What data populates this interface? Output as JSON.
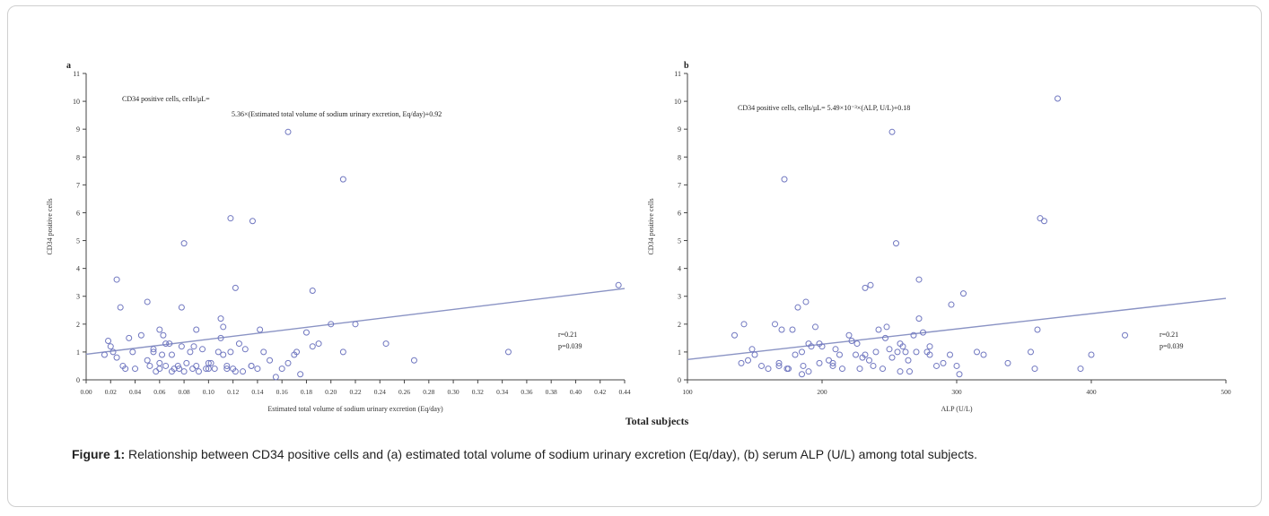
{
  "figure": {
    "common_xlabel": "Total subjects",
    "caption_label": "Figure 1:",
    "caption_text": " Relationship between CD34 positive cells and (a) estimated total volume of sodium urinary excretion (Eq/day), (b) serum ALP (U/L) among total subjects."
  },
  "colors": {
    "marker": "#7077c0",
    "line": "#8a93c4",
    "axis": "#444444"
  },
  "chart_data": [
    {
      "type": "scatter",
      "panel_label": "a",
      "title": "",
      "ylabel": "CD34 positive cells",
      "xlabel": "Estimated total volume of sodium urinary excretion (Eq/day)",
      "xlim": [
        0,
        0.44
      ],
      "ylim": [
        0,
        11
      ],
      "xticks": [
        "0.00",
        "0.02",
        "0.04",
        "0.06",
        "0.08",
        "0.10",
        "0.12",
        "0.14",
        "0.16",
        "0.18",
        "0.20",
        "0.22",
        "0.24",
        "0.26",
        "0.28",
        "0.30",
        "0.32",
        "0.34",
        "0.36",
        "0.38",
        "0.40",
        "0.42",
        "0.44"
      ],
      "yticks": [
        "0",
        "1",
        "2",
        "3",
        "4",
        "5",
        "6",
        "7",
        "8",
        "9",
        "10",
        "11"
      ],
      "equation_line1": "CD34 positive cells, cells/μL=",
      "equation_line2": "5.36×(Estimated total volume of sodium urinary excretion, Eq/day)+0.92",
      "r_text": "r=0.21",
      "p_text": "p=0.039",
      "fit": {
        "slope": 5.36,
        "intercept": 0.92
      },
      "x": [
        0.015,
        0.02,
        0.022,
        0.025,
        0.03,
        0.032,
        0.035,
        0.04,
        0.045,
        0.05,
        0.052,
        0.055,
        0.057,
        0.06,
        0.06,
        0.062,
        0.063,
        0.065,
        0.068,
        0.07,
        0.072,
        0.075,
        0.078,
        0.08,
        0.082,
        0.085,
        0.087,
        0.09,
        0.092,
        0.095,
        0.1,
        0.102,
        0.105,
        0.108,
        0.11,
        0.112,
        0.115,
        0.118,
        0.12,
        0.122,
        0.125,
        0.13,
        0.135,
        0.14,
        0.145,
        0.15,
        0.155,
        0.16,
        0.165,
        0.17,
        0.175,
        0.18,
        0.185,
        0.19,
        0.2,
        0.21,
        0.22,
        0.245,
        0.268,
        0.345,
        0.435,
        0.018,
        0.028,
        0.05,
        0.078,
        0.11,
        0.118,
        0.136,
        0.165,
        0.185,
        0.21,
        0.08,
        0.06,
        0.07,
        0.09,
        0.098,
        0.112,
        0.122,
        0.128,
        0.142,
        0.172,
        0.025,
        0.038,
        0.055,
        0.065,
        0.076,
        0.088,
        0.1,
        0.115,
        0.135
      ],
      "y": [
        0.9,
        1.2,
        1.0,
        0.8,
        0.5,
        0.4,
        1.5,
        0.4,
        1.6,
        0.7,
        0.5,
        1.1,
        0.3,
        1.8,
        0.4,
        0.9,
        1.6,
        0.5,
        1.3,
        0.9,
        0.4,
        0.5,
        1.2,
        0.3,
        0.6,
        1.0,
        0.4,
        0.5,
        0.3,
        1.1,
        0.4,
        0.6,
        0.4,
        1.0,
        1.5,
        0.9,
        0.5,
        1.0,
        0.4,
        0.3,
        1.3,
        1.1,
        0.5,
        0.4,
        1.0,
        0.7,
        0.1,
        0.4,
        0.6,
        0.9,
        0.2,
        1.7,
        1.2,
        1.3,
        2.0,
        1.0,
        2.0,
        1.3,
        0.7,
        1.0,
        3.4,
        1.4,
        2.6,
        2.8,
        2.6,
        2.2,
        5.8,
        5.7,
        8.9,
        3.2,
        7.2,
        4.9,
        0.6,
        0.3,
        1.8,
        0.4,
        1.9,
        3.3,
        0.3,
        1.8,
        1.0,
        3.6,
        1.0,
        1.0,
        1.3,
        0.4,
        1.2,
        0.6,
        0.4,
        0.5
      ]
    },
    {
      "type": "scatter",
      "panel_label": "b",
      "title": "",
      "ylabel": "CD34 positive cells",
      "xlabel": "ALP (U/L)",
      "xlim": [
        100,
        500
      ],
      "ylim": [
        0,
        11
      ],
      "xticks": [
        "100",
        "200",
        "300",
        "400",
        "500"
      ],
      "yticks": [
        "0",
        "1",
        "2",
        "3",
        "4",
        "5",
        "6",
        "7",
        "8",
        "9",
        "10",
        "11"
      ],
      "equation_line1": "CD34 positive cells, cells/μL= 5.49×10⁻³×(ALP, U/L)+0.18",
      "equation_line2": "",
      "r_text": "r=0.21",
      "p_text": "p=0.039",
      "fit": {
        "slope": 0.00549,
        "intercept": 0.18
      },
      "x": [
        135,
        140,
        142,
        148,
        150,
        155,
        160,
        165,
        168,
        170,
        172,
        175,
        178,
        180,
        182,
        185,
        186,
        188,
        190,
        192,
        195,
        198,
        200,
        205,
        208,
        210,
        215,
        220,
        222,
        225,
        228,
        230,
        232,
        235,
        238,
        240,
        242,
        245,
        248,
        250,
        252,
        255,
        258,
        260,
        262,
        265,
        268,
        270,
        272,
        275,
        278,
        280,
        285,
        290,
        295,
        300,
        302,
        305,
        320,
        338,
        355,
        358,
        362,
        365,
        375,
        392,
        400,
        425,
        168,
        252,
        258,
        272,
        360,
        232,
        236,
        185,
        145,
        190,
        208,
        226,
        247,
        256,
        264,
        280,
        296,
        315,
        174,
        213,
        198
      ],
      "y": [
        1.6,
        0.6,
        2.0,
        1.1,
        0.9,
        0.5,
        0.4,
        2.0,
        0.6,
        1.8,
        7.2,
        0.4,
        1.8,
        0.9,
        2.6,
        0.2,
        0.5,
        2.8,
        0.3,
        1.2,
        1.9,
        0.6,
        1.2,
        0.7,
        0.5,
        1.1,
        0.4,
        1.6,
        1.4,
        0.9,
        0.4,
        0.8,
        0.9,
        0.7,
        0.5,
        1.0,
        1.8,
        0.4,
        1.9,
        1.1,
        8.9,
        4.9,
        0.3,
        1.2,
        1.0,
        0.3,
        1.6,
        1.0,
        3.6,
        1.7,
        1.0,
        0.9,
        0.5,
        0.6,
        0.9,
        0.5,
        0.2,
        3.1,
        0.9,
        0.6,
        1.0,
        0.4,
        5.8,
        5.7,
        10.1,
        0.4,
        0.9,
        1.6,
        0.5,
        0.8,
        1.3,
        2.2,
        1.8,
        3.3,
        3.4,
        1.0,
        0.7,
        1.3,
        0.6,
        1.3,
        1.5,
        1.0,
        0.7,
        1.2,
        2.7,
        1.0,
        0.4,
        0.9,
        1.3
      ]
    }
  ]
}
